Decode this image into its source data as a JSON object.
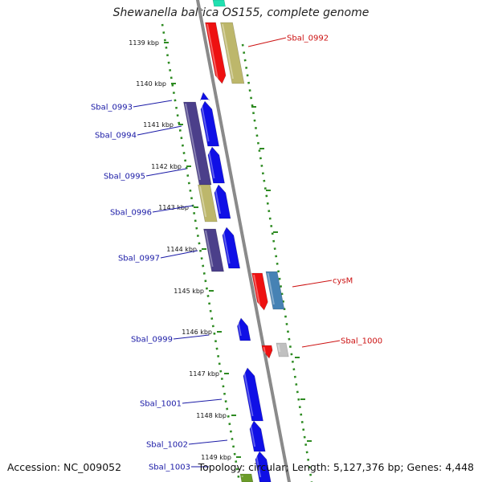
{
  "title": "Shewanella baltica OS155, complete genome",
  "accession": "Accession: NC_009052",
  "summary": "Topology: circular; Length: 5,127,376 bp; Genes: 4,448",
  "ticks": [
    "1139 kbp",
    "1140 kbp",
    "1141 kbp",
    "1142 kbp",
    "1143 kbp",
    "1144 kbp",
    "1145 kbp",
    "1146 kbp",
    "1147 kbp",
    "1148 kbp",
    "1149 kbp"
  ],
  "labels_left": [
    "Sbal_0993",
    "Sbal_0994",
    "Sbal_0995",
    "Sbal_0996",
    "Sbal_0997",
    "Sbal_0999",
    "Sbal_1001",
    "Sbal_1002",
    "Sbal_1003"
  ],
  "labels_right": [
    "Sbal_0992",
    "cysM",
    "Sbal_1000"
  ],
  "colors": {
    "backbone": "#8a8a8a",
    "tick": "#2e8b22",
    "label_left": "#1a1aa6",
    "label_right": "#cc1111",
    "blue": "#1010e6",
    "red": "#ee1111",
    "khaki": "#bdb76b",
    "indigo": "#4b3f8a",
    "steelblue": "#4682b4",
    "silver": "#c0c0c0",
    "teal": "#20e0b0",
    "olive": "#6b9c2a"
  }
}
